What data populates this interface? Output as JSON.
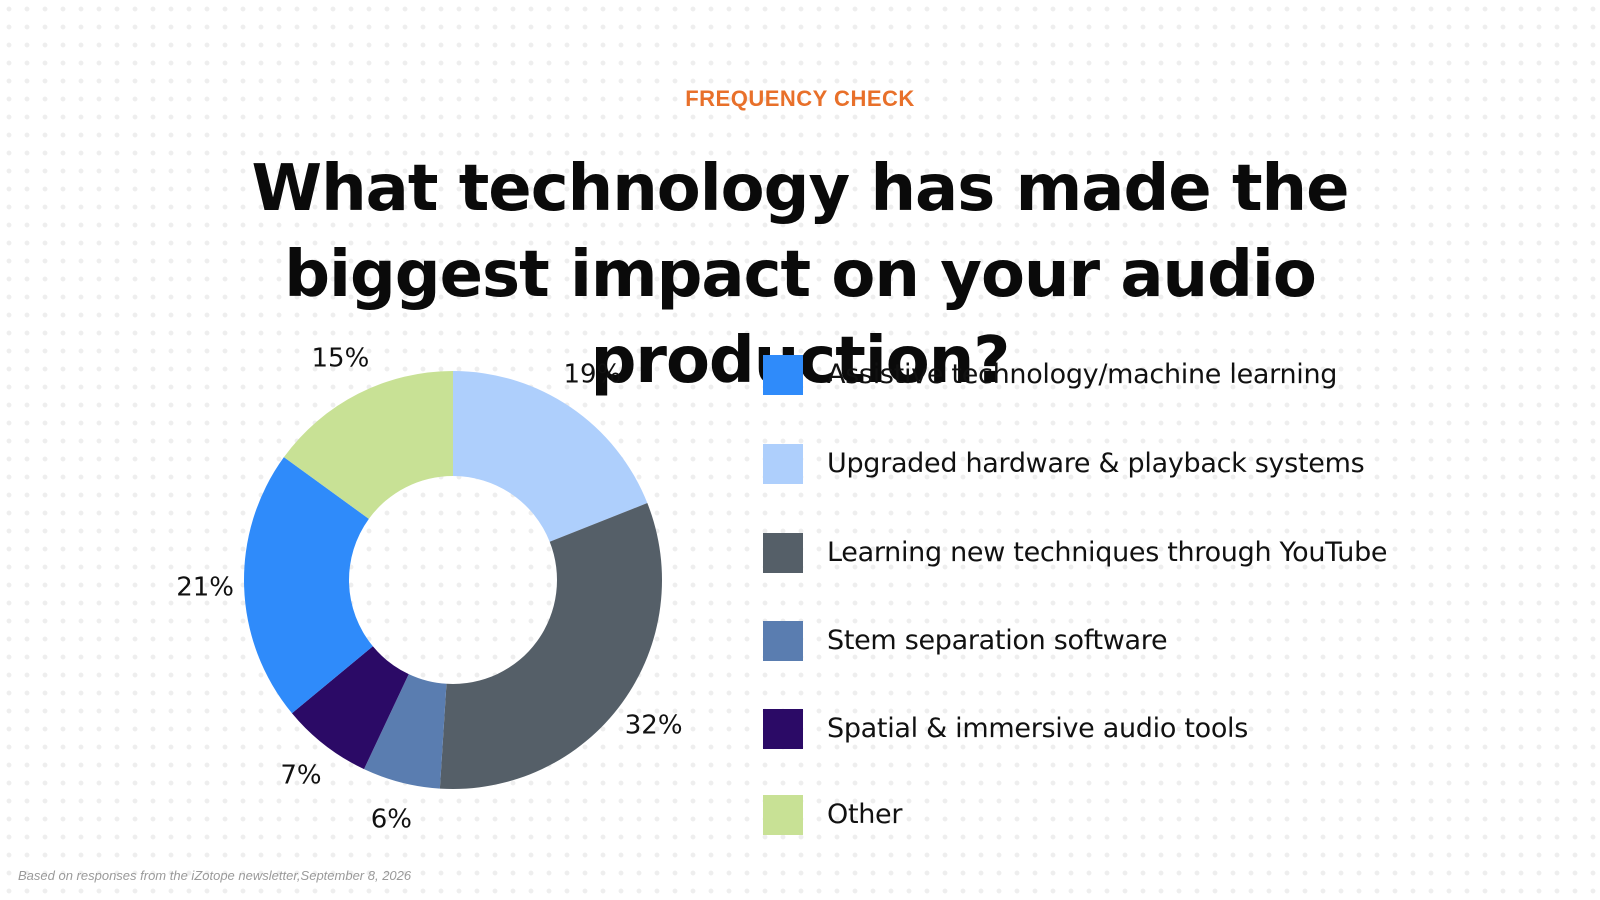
{
  "eyebrow": "FREQUENCY CHECK",
  "title": "What technology has made the biggest impact on your audio production?",
  "footnote": "Based on responses from the iZotope newsletter,September 8, 2026",
  "chart_data": {
    "type": "pie",
    "title": "What technology has made the biggest impact on your audio production?",
    "donut": true,
    "legend_position": "right",
    "slices": [
      {
        "label": "Upgraded hardware & playback systems",
        "value": 19,
        "display": "19%",
        "color": "#aecffc"
      },
      {
        "label": "Learning new techniques through YouTube",
        "value": 32,
        "display": "32%",
        "color": "#555f68"
      },
      {
        "label": "Stem separation software",
        "value": 6,
        "display": "6%",
        "color": "#5a7db0"
      },
      {
        "label": "Spatial & immersive audio tools",
        "value": 7,
        "display": "7%",
        "color": "#2b0a66"
      },
      {
        "label": "Assistive technology/machine learning",
        "value": 21,
        "display": "21%",
        "color": "#2f8bfa"
      },
      {
        "label": "Other",
        "value": 15,
        "display": "15%",
        "color": "#c8e195"
      }
    ]
  },
  "legend": [
    {
      "label": "Assistive technology/machine learning",
      "color": "#2f8bfa"
    },
    {
      "label": "Upgraded hardware & playback systems",
      "color": "#aecffc"
    },
    {
      "label": "Learning new techniques through YouTube",
      "color": "#555f68"
    },
    {
      "label": "Stem separation software",
      "color": "#5a7db0"
    },
    {
      "label": "Spatial & immersive audio tools",
      "color": "#2b0a66"
    },
    {
      "label": "Other",
      "color": "#c8e195"
    }
  ]
}
